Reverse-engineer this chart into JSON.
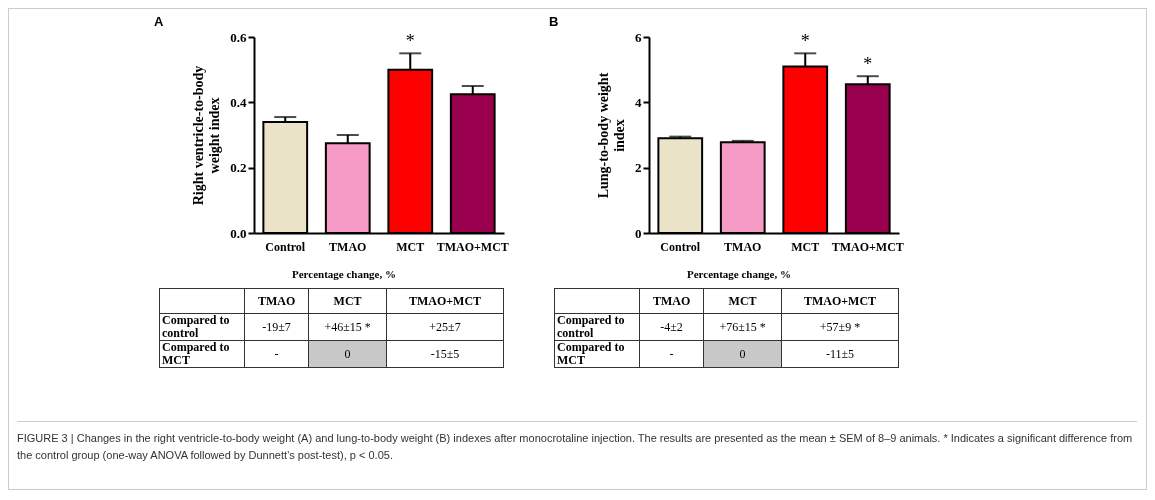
{
  "chart_data": [
    {
      "type": "bar",
      "title": "A",
      "ylabel": "Right ventricle-to-body weight index",
      "categories": [
        "Control",
        "TMAO",
        "MCT",
        "TMAO+MCT"
      ],
      "values": [
        0.34,
        0.275,
        0.5,
        0.425
      ],
      "errors": [
        0.015,
        0.025,
        0.05,
        0.025
      ],
      "colors": [
        "#ebe3c8",
        "#f59ac5",
        "#ff0000",
        "#99004d"
      ],
      "ylim": [
        0,
        0.6
      ],
      "yticks": [
        {
          "value": 0,
          "label": "0.0"
        },
        0.2,
        0.4,
        0.6
      ],
      "grid": false,
      "legend": false,
      "annotations": [
        {
          "text": "*",
          "x": "MCT",
          "y": 0.5
        },
        "Percentage change, %",
        "TMAO",
        "MCT",
        "TMAO+MCT",
        "Compared to control",
        "-19±7",
        "+46±15 *",
        "+25±7",
        "Compared to MCT",
        "-",
        "0",
        "-15±5"
      ]
    },
    {
      "type": "bar",
      "title": "B",
      "ylabel": "Lung-to-body weight index",
      "categories": [
        "Control",
        "TMAO",
        "MCT",
        "TMAO+MCT"
      ],
      "values": [
        2.9,
        2.78,
        5.1,
        4.55
      ],
      "errors": [
        0.05,
        0.04,
        0.4,
        0.25
      ],
      "colors": [
        "#ebe3c8",
        "#f59ac5",
        "#ff0000",
        "#99004d"
      ],
      "ylim": [
        0,
        6
      ],
      "yticks": [
        0,
        2,
        4,
        6
      ],
      "grid": false,
      "legend": false,
      "annotations": [
        {
          "text": "*",
          "x": "MCT",
          "y": 5.1
        },
        {
          "text": "*",
          "x": "TMAO+MCT",
          "y": 4.8
        },
        "Percentage change, %",
        "TMAO",
        "MCT",
        "TMAO+MCT",
        "Compared to control",
        "-4±2",
        "+76±15 *",
        "+57±9 *",
        "Compared to MCT",
        "-",
        "0",
        "-11±5",
        "FIGURE 3 | Changes in the right ventricle-to-body weight (A) and lung-to-body weight (B) indexes after monocrotaline injection. The results are presented as the mean ± SEM of 8–9 animals. * Indicates a significant difference from the control group (one-way ANOVA followed by Dunnett’s post-test), p < 0.05."
      ]
    }
  ]
}
